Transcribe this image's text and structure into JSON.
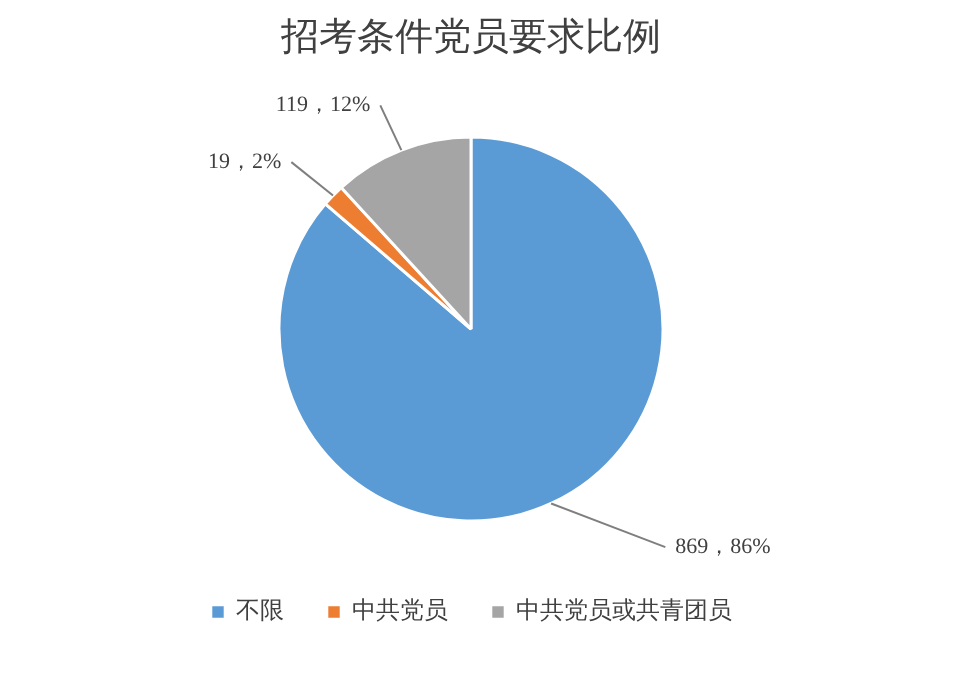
{
  "chart_data": {
    "type": "pie",
    "title": "招考条件党员要求比例",
    "categories": [
      "不限",
      "中共党员",
      "中共党员或共青团员"
    ],
    "values": [
      869,
      19,
      119
    ],
    "colors": [
      "#5b9bd5",
      "#ed7d31",
      "#a5a5a5"
    ],
    "value_labels": [
      "869，86%",
      "19，2%",
      "119，12%"
    ],
    "legend": "bottom"
  }
}
